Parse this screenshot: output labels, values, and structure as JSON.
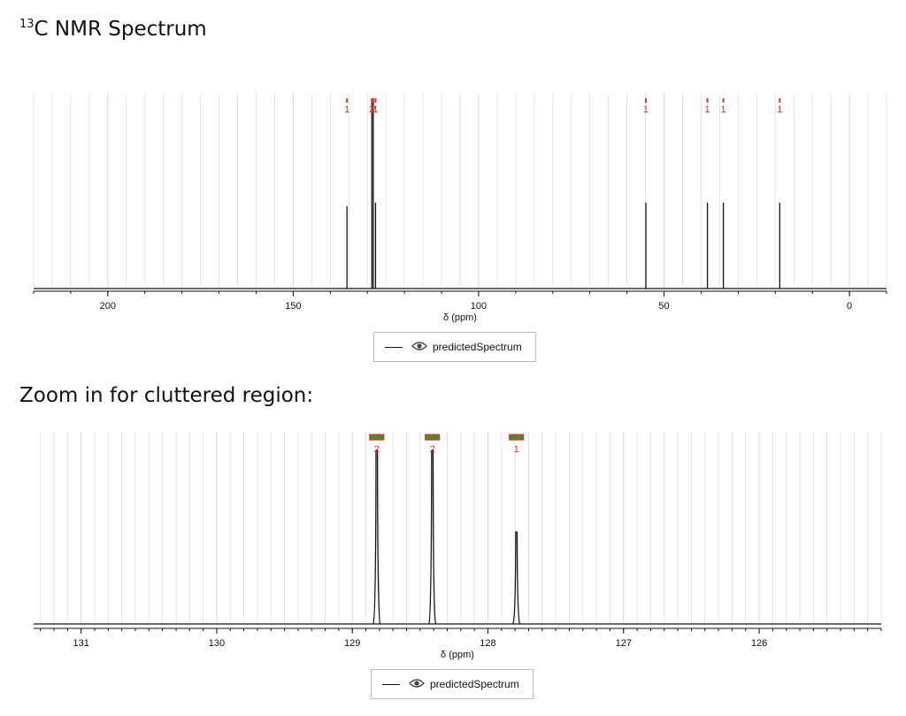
{
  "headings": {
    "main_prefix": "13",
    "main_rest": "C NMR Spectrum",
    "zoom": "Zoom in for cluttered region:"
  },
  "legend": {
    "label": "predictedSpectrum",
    "icon": "eye-icon"
  },
  "colors": {
    "line": "#111111",
    "annotation": "#e8302a",
    "grid": "#e2e2e2",
    "range_bar_fill": "#4a8a2a",
    "range_bar_edge": "#e8302a"
  },
  "chart_data": [
    {
      "type": "line",
      "title": "13C NMR Spectrum",
      "xlabel": "δ (ppm)",
      "ylabel": "",
      "xlim": [
        220,
        -10
      ],
      "x_reversed": true,
      "x_ticks": [
        200,
        150,
        100,
        50,
        0
      ],
      "grid": true,
      "series": [
        {
          "name": "predictedSpectrum",
          "peaks": [
            {
              "ppm": 135.5,
              "height": 0.44
            },
            {
              "ppm": 128.8,
              "height": 1.0
            },
            {
              "ppm": 128.4,
              "height": 1.0
            },
            {
              "ppm": 127.8,
              "height": 0.46
            },
            {
              "ppm": 54.9,
              "height": 0.46
            },
            {
              "ppm": 38.3,
              "height": 0.46
            },
            {
              "ppm": 34.0,
              "height": 0.46
            },
            {
              "ppm": 18.8,
              "height": 0.46
            }
          ]
        }
      ],
      "annotations": [
        {
          "ppm": 135.5,
          "label": "1"
        },
        {
          "ppm": 128.8,
          "label": "2"
        },
        {
          "ppm": 128.4,
          "label": "2"
        },
        {
          "ppm": 127.8,
          "label": "1"
        },
        {
          "ppm": 54.9,
          "label": "1"
        },
        {
          "ppm": 38.3,
          "label": "1"
        },
        {
          "ppm": 34.0,
          "label": "1"
        },
        {
          "ppm": 18.8,
          "label": "1"
        }
      ]
    },
    {
      "type": "line",
      "title": "Zoom in for cluttered region:",
      "xlabel": "δ (ppm)",
      "ylabel": "",
      "xlim": [
        131.35,
        125.1
      ],
      "x_reversed": true,
      "x_ticks": [
        131,
        130,
        129,
        128,
        127,
        126
      ],
      "grid": true,
      "series": [
        {
          "name": "predictedSpectrum",
          "peaks": [
            {
              "ppm": 128.82,
              "height": 1.0
            },
            {
              "ppm": 128.41,
              "height": 1.0
            },
            {
              "ppm": 127.79,
              "height": 0.53
            }
          ]
        }
      ],
      "annotations": [
        {
          "ppm": 128.82,
          "label": "2"
        },
        {
          "ppm": 128.41,
          "label": "2"
        },
        {
          "ppm": 127.79,
          "label": "1"
        }
      ]
    }
  ]
}
